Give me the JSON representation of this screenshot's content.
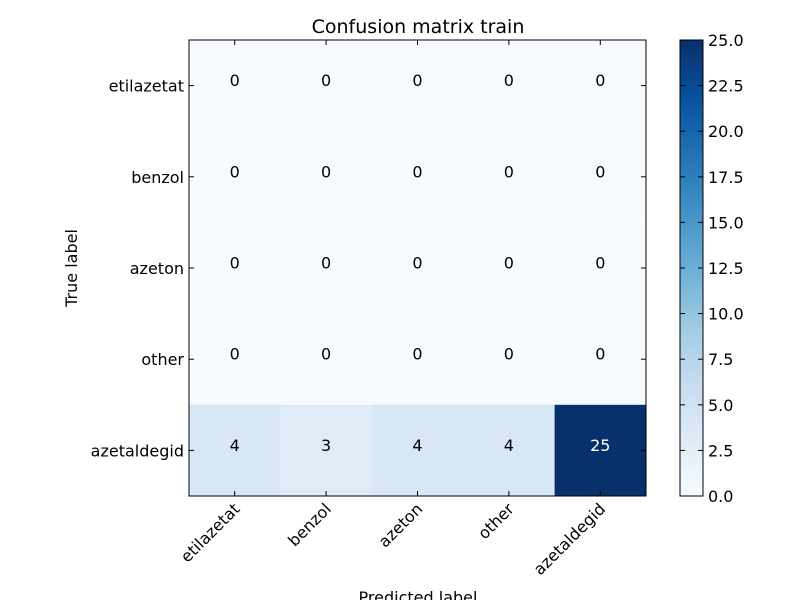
{
  "chart_data": {
    "type": "heatmap",
    "title": "Confusion matrix train",
    "xlabel": "Predicted label",
    "ylabel": "True label",
    "x_categories": [
      "etilazetat",
      "benzol",
      "azeton",
      "other",
      "azetaldegid"
    ],
    "y_categories": [
      "etilazetat",
      "benzol",
      "azeton",
      "other",
      "azetaldegid"
    ],
    "values": [
      [
        0,
        0,
        0,
        0,
        0
      ],
      [
        0,
        0,
        0,
        0,
        0
      ],
      [
        0,
        0,
        0,
        0,
        0
      ],
      [
        0,
        0,
        0,
        0,
        0
      ],
      [
        4,
        3,
        4,
        4,
        25
      ]
    ],
    "colormap": "Blues",
    "colorbar": {
      "range": [
        0.0,
        25.0
      ],
      "ticks": [
        "0.0",
        "2.5",
        "5.0",
        "7.5",
        "10.0",
        "12.5",
        "15.0",
        "17.5",
        "20.0",
        "22.5",
        "25.0"
      ]
    },
    "grid": false
  }
}
